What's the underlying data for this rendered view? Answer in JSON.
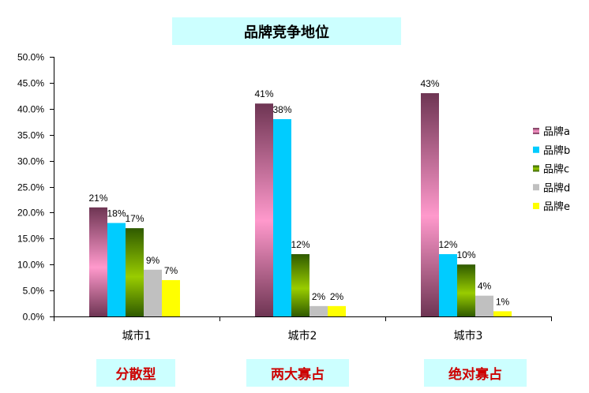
{
  "chart_data": {
    "type": "bar",
    "title": "品牌竞争地位",
    "categories": [
      "城市1",
      "城市2",
      "城市3"
    ],
    "series": [
      {
        "name": "品牌a",
        "values": [
          21,
          41,
          43
        ],
        "labels": [
          "21%",
          "41%",
          "43%"
        ],
        "color": "#ff99cc",
        "color_dark": "#6e3553"
      },
      {
        "name": "品牌b",
        "values": [
          18,
          38,
          12
        ],
        "labels": [
          "18%",
          "38%",
          "12%"
        ],
        "color": "#00ccff"
      },
      {
        "name": "品牌c",
        "values": [
          17,
          12,
          10
        ],
        "labels": [
          "17%",
          "12%",
          "10%"
        ],
        "color": "#99cc00",
        "color_dark": "#2f5a00"
      },
      {
        "name": "品牌d",
        "values": [
          9,
          2,
          4
        ],
        "labels": [
          "9%",
          "2%",
          "4%"
        ],
        "color": "#c0c0c0"
      },
      {
        "name": "品牌e",
        "values": [
          7,
          2,
          1
        ],
        "labels": [
          "7%",
          "2%",
          "1%"
        ],
        "color": "#ffff00"
      }
    ],
    "ylim": [
      0,
      50
    ],
    "yticks": [
      0,
      5,
      10,
      15,
      20,
      25,
      30,
      35,
      40,
      45,
      50
    ],
    "ytick_labels": [
      "0.0%",
      "5.0%",
      "10.0%",
      "15.0%",
      "20.0%",
      "25.0%",
      "30.0%",
      "35.0%",
      "40.0%",
      "45.0%",
      "50.0%"
    ],
    "grid": false,
    "legend": "right",
    "annotations": [
      "分散型",
      "两大寡占",
      "绝对寡占"
    ]
  }
}
